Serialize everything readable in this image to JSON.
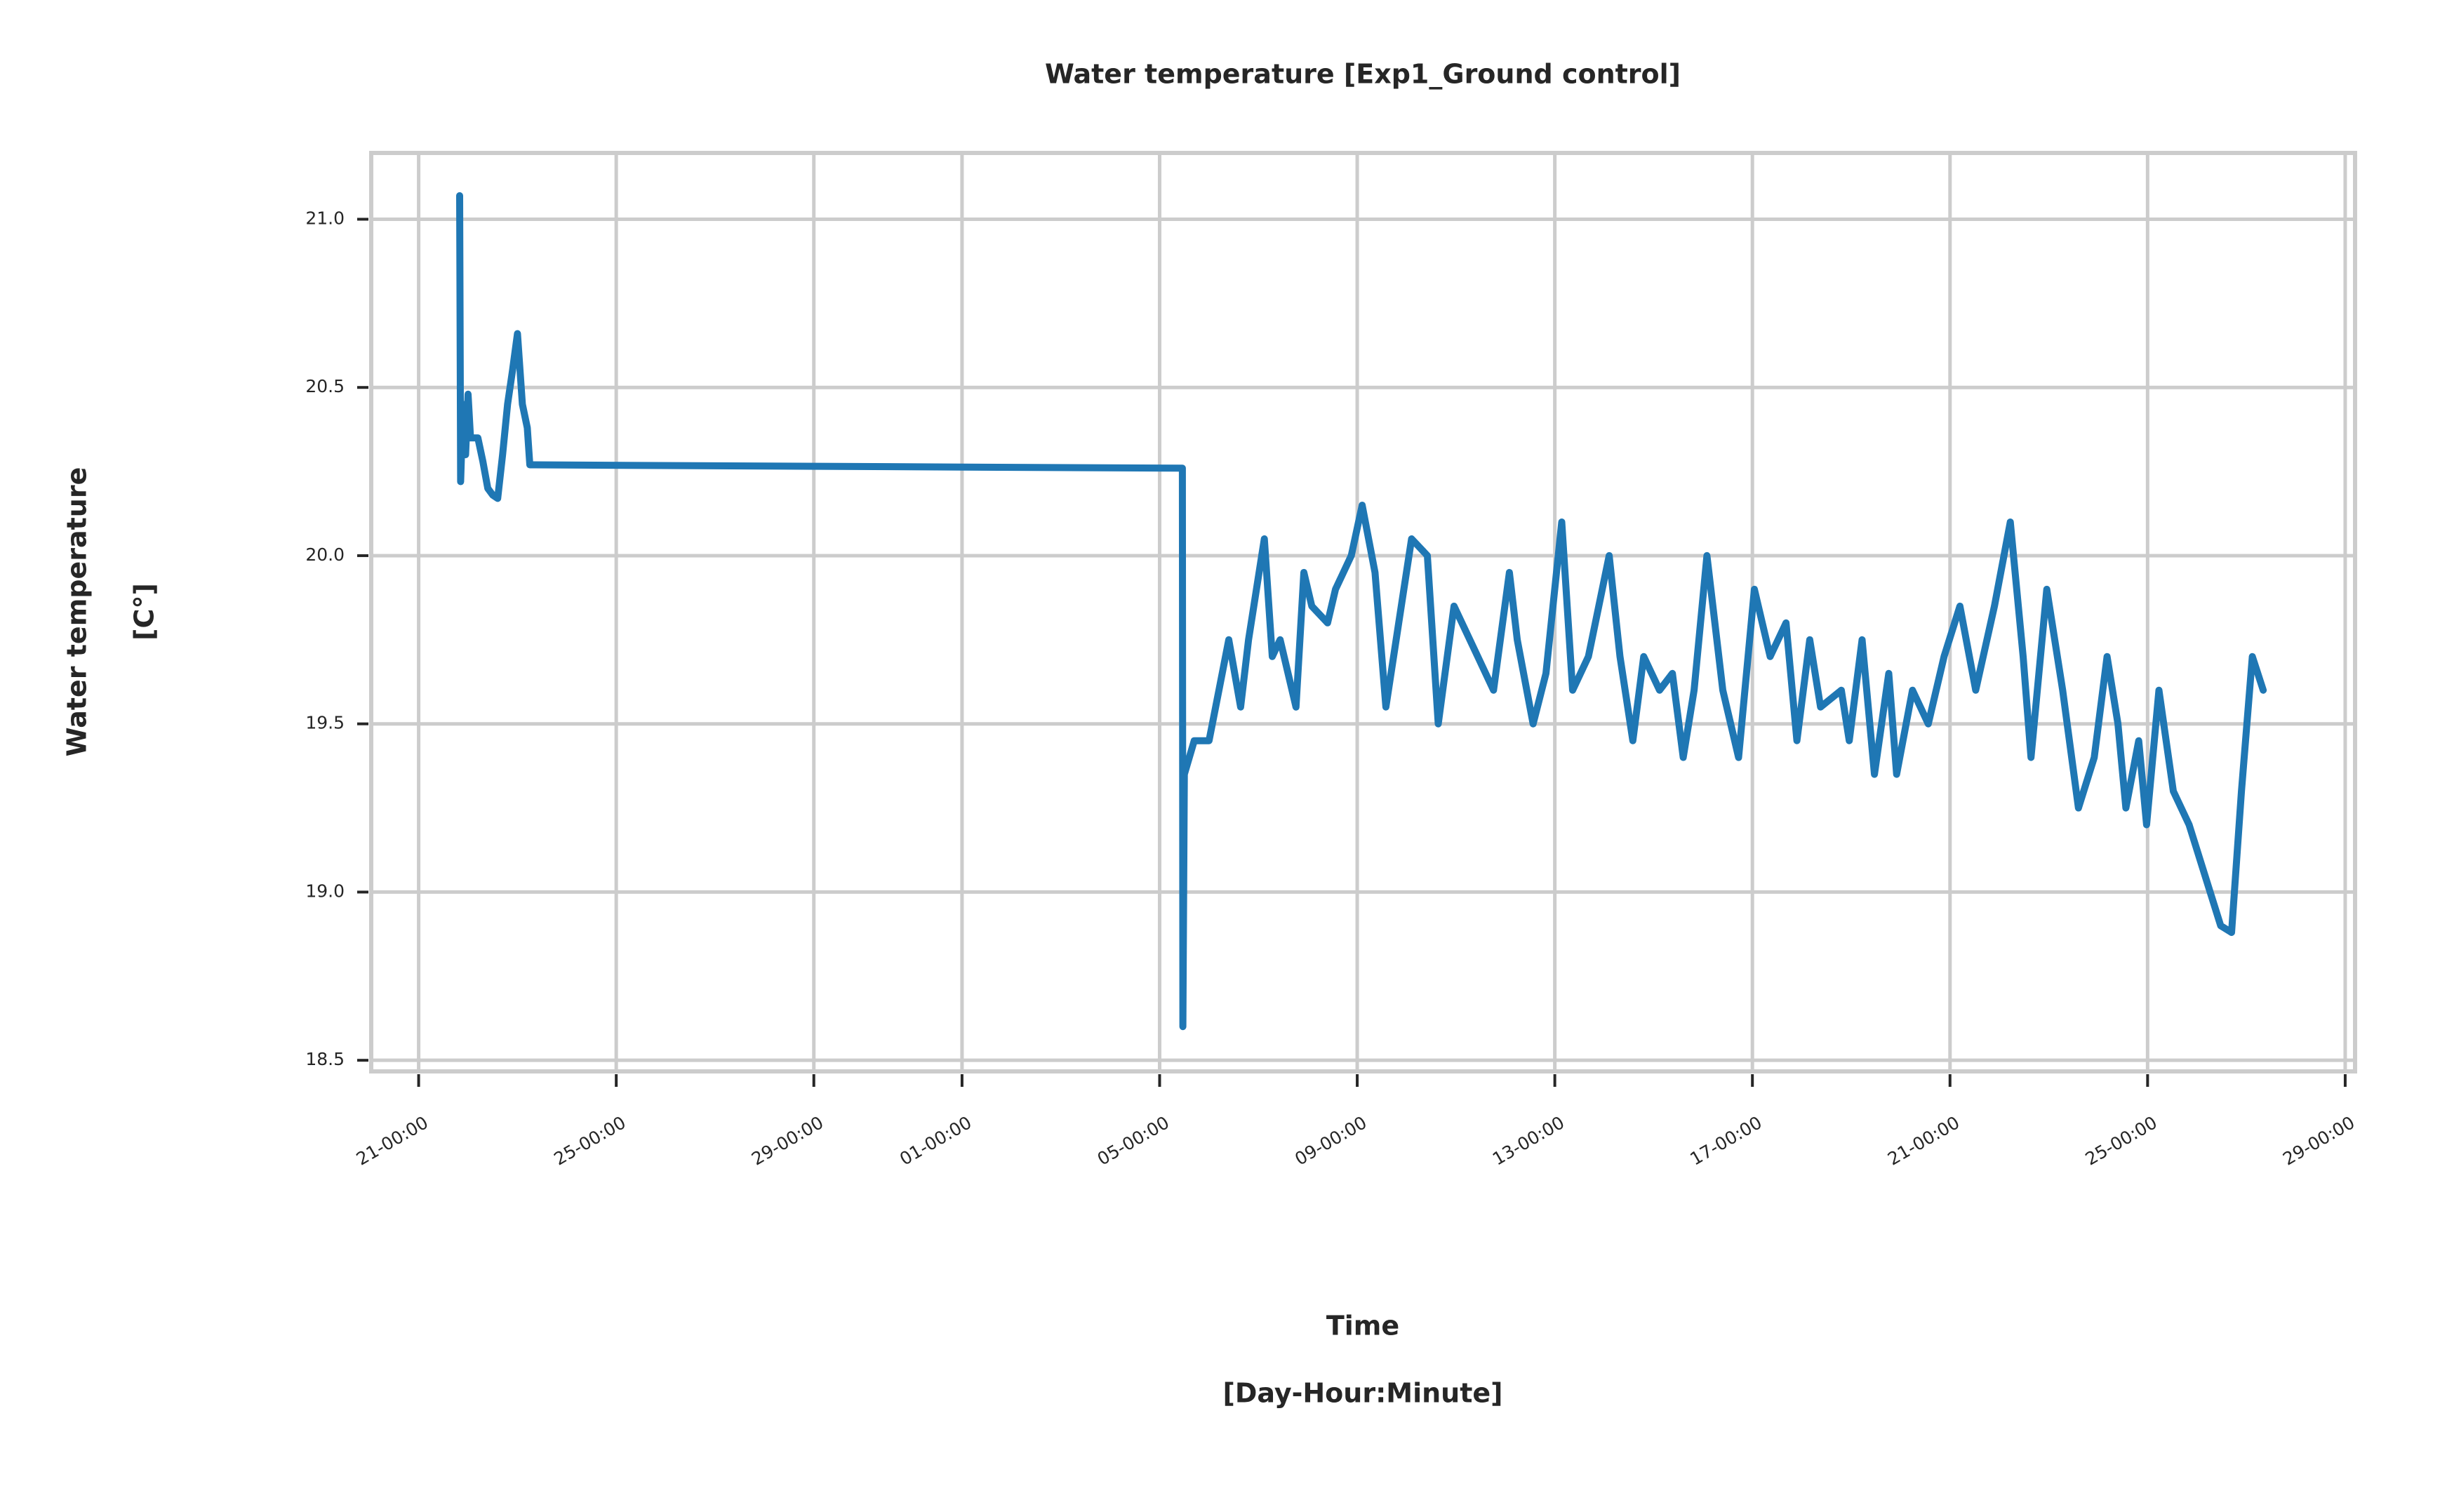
{
  "chart_data": {
    "type": "line",
    "title": "Water temperature [Exp1_Ground control]",
    "xlabel": [
      "Time",
      "[Day-Hour:Minute]"
    ],
    "ylabel": [
      "Water temperature",
      "[C°]"
    ],
    "xlim": [
      -0.96,
      39.2
    ],
    "ylim": [
      18.467,
      21.197
    ],
    "xticks": [
      {
        "value": 0,
        "label": "21-00:00"
      },
      {
        "value": 4,
        "label": "25-00:00"
      },
      {
        "value": 8,
        "label": "29-00:00"
      },
      {
        "value": 11,
        "label": "01-00:00"
      },
      {
        "value": 15,
        "label": "05-00:00"
      },
      {
        "value": 19,
        "label": "09-00:00"
      },
      {
        "value": 23,
        "label": "13-00:00"
      },
      {
        "value": 27,
        "label": "17-00:00"
      },
      {
        "value": 31,
        "label": "21-00:00"
      },
      {
        "value": 35,
        "label": "25-00:00"
      },
      {
        "value": 39,
        "label": "29-00:00"
      }
    ],
    "yticks": [
      {
        "value": 18.5,
        "label": "18.5"
      },
      {
        "value": 19,
        "label": "19.0"
      },
      {
        "value": 19.5,
        "label": "19.5"
      },
      {
        "value": 20,
        "label": "20.0"
      },
      {
        "value": 20.5,
        "label": "20.5"
      },
      {
        "value": 21,
        "label": "21.0"
      }
    ],
    "grid": true,
    "series": [
      {
        "color": "#1f77b4",
        "x": [
          0.83,
          0.85,
          0.9,
          0.95,
          1.0,
          1.05,
          1.2,
          1.3,
          1.4,
          1.5,
          1.6,
          1.7,
          1.8,
          1.9,
          2.0,
          2.1,
          2.2,
          2.25,
          15.46,
          15.47,
          15.5,
          15.7,
          16.0,
          16.2,
          16.4,
          16.64,
          16.8,
          17.12,
          17.28,
          17.44,
          17.76,
          17.92,
          18.08,
          18.4,
          18.56,
          18.88,
          19.1,
          19.36,
          19.58,
          19.84,
          20.1,
          20.42,
          20.64,
          20.96,
          21.44,
          21.76,
          22.08,
          22.24,
          22.56,
          22.82,
          23.14,
          23.36,
          23.68,
          24.1,
          24.32,
          24.58,
          24.8,
          25.12,
          25.38,
          25.6,
          25.82,
          26.08,
          26.4,
          26.72,
          27.04,
          27.36,
          27.68,
          27.9,
          28.16,
          28.38,
          28.8,
          28.96,
          29.22,
          29.47,
          29.76,
          29.92,
          30.24,
          30.56,
          30.88,
          31.2,
          31.52,
          31.9,
          32.22,
          32.48,
          32.64,
          32.96,
          33.28,
          33.6,
          33.92,
          34.18,
          34.4,
          34.56,
          34.82,
          34.98,
          35.23,
          35.52,
          35.84,
          36.16,
          36.48,
          36.7,
          36.9,
          37.12,
          37.34
        ],
        "values": [
          21.07,
          20.22,
          20.45,
          20.3,
          20.48,
          20.35,
          20.35,
          20.28,
          20.2,
          20.18,
          20.17,
          20.3,
          20.45,
          20.55,
          20.66,
          20.45,
          20.38,
          20.27,
          20.26,
          18.6,
          19.35,
          19.45,
          19.45,
          19.6,
          19.75,
          19.55,
          19.75,
          20.05,
          19.7,
          19.75,
          19.55,
          19.95,
          19.85,
          19.8,
          19.9,
          20.0,
          20.15,
          19.95,
          19.55,
          19.8,
          20.05,
          20.0,
          19.5,
          19.85,
          19.7,
          19.6,
          19.95,
          19.75,
          19.5,
          19.65,
          20.1,
          19.6,
          19.7,
          20.0,
          19.7,
          19.45,
          19.7,
          19.6,
          19.65,
          19.4,
          19.6,
          20.0,
          19.6,
          19.4,
          19.9,
          19.7,
          19.8,
          19.45,
          19.75,
          19.55,
          19.6,
          19.45,
          19.75,
          19.35,
          19.65,
          19.35,
          19.6,
          19.5,
          19.7,
          19.85,
          19.6,
          19.85,
          20.1,
          19.7,
          19.4,
          19.9,
          19.6,
          19.25,
          19.4,
          19.7,
          19.5,
          19.25,
          19.45,
          19.2,
          19.6,
          19.3,
          19.2,
          19.05,
          18.9,
          18.88,
          19.3,
          19.7,
          19.6
        ]
      }
    ]
  }
}
